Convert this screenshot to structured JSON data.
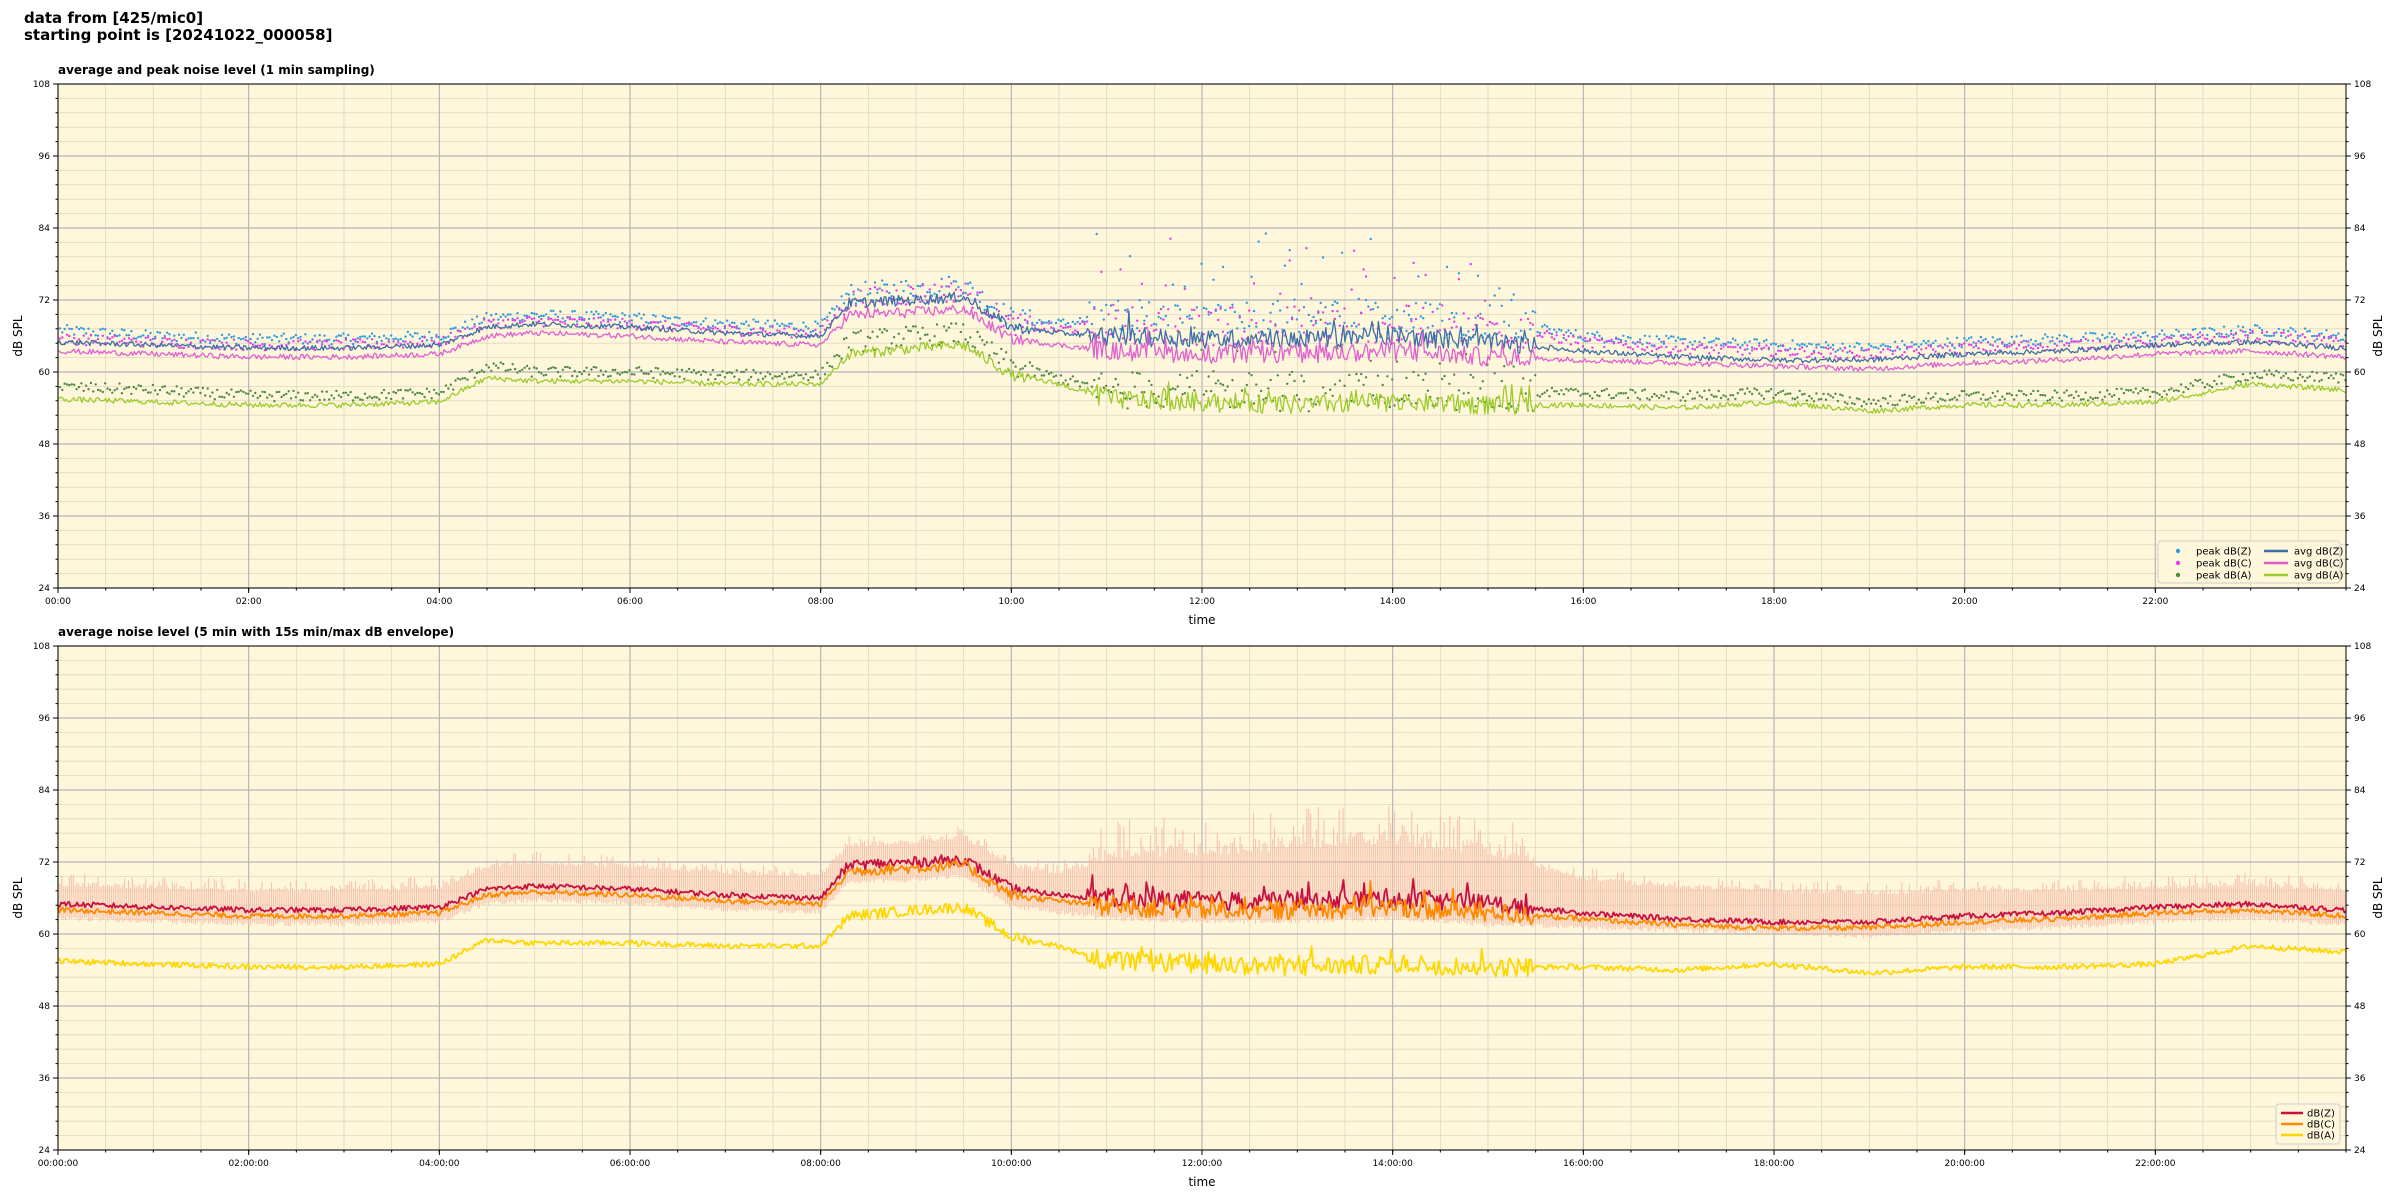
{
  "header": {
    "line1": "data from [425/mic0]",
    "line2": "starting point is [20241022_000058]"
  },
  "colors": {
    "plot_bg": "#fff7dc",
    "major_grid": "#b5b5b5",
    "minor_grid": "#e0d8bd",
    "peak_z": "#2f9be0",
    "peak_c": "#e040e8",
    "peak_a": "#4f8a42",
    "avg_z": "#3e6fa6",
    "avg_c": "#e060d0",
    "avg_a": "#9ccc2c",
    "dbz": "#c8103f",
    "dbc": "#ff8a00",
    "dba": "#ffd700",
    "envelope": "#f6b8a6"
  },
  "chart_data": [
    {
      "type": "line",
      "title": "average and peak noise level (1 min sampling)",
      "xlabel": "time",
      "ylabel": "dB SPL",
      "ylim": [
        24,
        108
      ],
      "yticks": [
        "24",
        "36",
        "48",
        "60",
        "72",
        "84",
        "96",
        "108"
      ],
      "xlim": [
        0,
        24
      ],
      "xticks": [
        "00:00",
        "02:00",
        "04:00",
        "06:00",
        "08:00",
        "10:00",
        "12:00",
        "14:00",
        "16:00",
        "18:00",
        "20:00",
        "22:00"
      ],
      "grid": true,
      "legend_position": "lower-right",
      "legend_columns": 2,
      "series": [
        {
          "name": "peak dB(Z)",
          "kind": "scatter",
          "color_key": "peak_z",
          "x": [
            0,
            1,
            2,
            3,
            4,
            4.5,
            5,
            6,
            7,
            8,
            8.3,
            9,
            9.5,
            10,
            10.5,
            11,
            12,
            13,
            14,
            15,
            16,
            17,
            18,
            19,
            20,
            21,
            22,
            23,
            24
          ],
          "y": [
            67,
            66,
            65.5,
            65.5,
            66,
            69,
            69.5,
            69,
            68,
            67.5,
            73,
            74,
            74.5,
            69,
            68,
            69,
            68.5,
            69,
            69,
            68.5,
            66,
            65,
            64.5,
            64,
            65,
            65.5,
            66,
            67,
            66
          ]
        },
        {
          "name": "peak dB(C)",
          "kind": "scatter",
          "color_key": "peak_c",
          "x": [
            0,
            1,
            2,
            3,
            4,
            4.5,
            5,
            6,
            7,
            8,
            8.3,
            9,
            9.5,
            10,
            10.5,
            11,
            12,
            13,
            14,
            15,
            16,
            17,
            18,
            19,
            20,
            21,
            22,
            23,
            24
          ],
          "y": [
            65.5,
            65,
            64.5,
            64.5,
            65,
            68,
            68.5,
            68,
            67,
            66.5,
            72,
            73,
            73.5,
            68,
            67,
            68,
            67.5,
            68,
            68,
            67.5,
            65,
            64,
            63.5,
            63,
            64,
            64.5,
            65,
            66,
            65
          ]
        },
        {
          "name": "peak dB(A)",
          "kind": "scatter",
          "color_key": "peak_a",
          "x": [
            0,
            1,
            2,
            3,
            4,
            4.5,
            5,
            6,
            7,
            8,
            8.3,
            9,
            9.5,
            10,
            10.5,
            11,
            12,
            13,
            14,
            15,
            16,
            17,
            18,
            19,
            20,
            21,
            22,
            23,
            24
          ],
          "y": [
            57.5,
            57,
            56,
            56,
            56.5,
            61,
            60,
            60,
            59.5,
            59.5,
            65,
            66,
            66.5,
            61,
            59,
            57,
            57,
            56.5,
            57,
            56.5,
            56.5,
            56,
            56.5,
            55,
            56,
            56,
            56.5,
            59.5,
            59
          ]
        },
        {
          "name": "avg dB(Z)",
          "kind": "line",
          "color_key": "avg_z",
          "x": [
            0,
            1,
            2,
            3,
            4,
            4.5,
            5,
            6,
            7,
            8,
            8.3,
            9,
            9.5,
            10,
            10.5,
            11,
            12,
            13,
            14,
            15,
            16,
            17,
            18,
            19,
            20,
            21,
            22,
            23,
            24
          ],
          "y": [
            65,
            64.5,
            64,
            64,
            64.5,
            67.5,
            68,
            67.5,
            66.5,
            66,
            71.5,
            72,
            72.5,
            67.5,
            66.5,
            66,
            65.5,
            65.5,
            66,
            65,
            63.5,
            62.5,
            62,
            62,
            63,
            63.5,
            64.5,
            65,
            64
          ]
        },
        {
          "name": "avg dB(C)",
          "kind": "line",
          "color_key": "avg_c",
          "x": [
            0,
            1,
            2,
            3,
            4,
            4.5,
            5,
            6,
            7,
            8,
            8.3,
            9,
            9.5,
            10,
            10.5,
            11,
            12,
            13,
            14,
            15,
            16,
            17,
            18,
            19,
            20,
            21,
            22,
            23,
            24
          ],
          "y": [
            63.5,
            63,
            62.5,
            62.5,
            63,
            66,
            66.5,
            66,
            65,
            64.5,
            69.5,
            70,
            70.5,
            65.5,
            64.5,
            63.5,
            63,
            63,
            63.5,
            62.5,
            62,
            61.5,
            61,
            60.5,
            61.5,
            62,
            63,
            63.5,
            62.5
          ]
        },
        {
          "name": "avg dB(A)",
          "kind": "line",
          "color_key": "avg_a",
          "x": [
            0,
            1,
            2,
            3,
            4,
            4.5,
            5,
            6,
            7,
            8,
            8.3,
            9,
            9.5,
            10,
            10.5,
            11,
            12,
            13,
            14,
            15,
            16,
            17,
            18,
            19,
            20,
            21,
            22,
            23,
            24
          ],
          "y": [
            55.5,
            55,
            54.5,
            54.5,
            55,
            59,
            58.5,
            58.5,
            58,
            58,
            63,
            64,
            64.5,
            59.5,
            58,
            55.5,
            55,
            54.5,
            55,
            54.5,
            54.5,
            54,
            55,
            53.5,
            54.5,
            54.5,
            55,
            58,
            57
          ]
        }
      ]
    },
    {
      "type": "line",
      "title": "average noise level (5 min with 15s min/max dB envelope)",
      "xlabel": "time",
      "ylabel": "dB SPL",
      "ylim": [
        24,
        108
      ],
      "yticks": [
        "24",
        "36",
        "48",
        "60",
        "72",
        "84",
        "96",
        "108"
      ],
      "xlim": [
        0,
        24
      ],
      "xticks": [
        "00:00:00",
        "02:00:00",
        "04:00:00",
        "06:00:00",
        "08:00:00",
        "10:00:00",
        "12:00:00",
        "14:00:00",
        "16:00:00",
        "18:00:00",
        "20:00:00",
        "22:00:00"
      ],
      "grid": true,
      "legend_position": "lower-right",
      "legend_columns": 1,
      "envelope": {
        "color_key": "envelope",
        "x": [
          0,
          1,
          2,
          3,
          4,
          4.5,
          5,
          6,
          7,
          8,
          8.3,
          9,
          9.5,
          10,
          10.5,
          11,
          12,
          13,
          14,
          15,
          16,
          17,
          18,
          19,
          20,
          21,
          22,
          23,
          24
        ],
        "low": [
          63,
          62.5,
          62,
          62,
          62.5,
          65.5,
          66,
          65.5,
          64.5,
          64,
          69,
          69.5,
          70,
          65,
          64,
          63,
          62.5,
          62.5,
          63,
          62,
          61.5,
          61,
          60.5,
          60,
          61,
          61.5,
          62.5,
          63,
          62
        ],
        "high": [
          68,
          67.5,
          67,
          67,
          67.5,
          71,
          71.5,
          71,
          70,
          69.5,
          74.5,
          75,
          76,
          71,
          70,
          72,
          73,
          74,
          75,
          73,
          69,
          67.5,
          67,
          66.5,
          67,
          67,
          67.5,
          68,
          67
        ]
      },
      "series": [
        {
          "name": "dB(Z)",
          "kind": "line",
          "color_key": "dbz",
          "x": [
            0,
            1,
            2,
            3,
            4,
            4.5,
            5,
            6,
            7,
            8,
            8.3,
            9,
            9.5,
            10,
            10.5,
            11,
            12,
            13,
            14,
            15,
            16,
            17,
            18,
            19,
            20,
            21,
            22,
            23,
            24
          ],
          "y": [
            65,
            64.5,
            64,
            64,
            64.5,
            67.5,
            68,
            67.5,
            66.5,
            66,
            71.5,
            72,
            72.5,
            67.5,
            66.5,
            66,
            65.5,
            65.5,
            66,
            65,
            63.5,
            62.5,
            62,
            62,
            63,
            63.5,
            64.5,
            65,
            64
          ]
        },
        {
          "name": "dB(C)",
          "kind": "line",
          "color_key": "dbc",
          "x": [
            0,
            1,
            2,
            3,
            4,
            4.5,
            5,
            6,
            7,
            8,
            8.3,
            9,
            9.5,
            10,
            10.5,
            11,
            12,
            13,
            14,
            15,
            16,
            17,
            18,
            19,
            20,
            21,
            22,
            23,
            24
          ],
          "y": [
            64,
            63.5,
            63,
            63,
            63.5,
            66.5,
            67,
            66.5,
            65.5,
            65,
            70.5,
            71,
            71.5,
            66.5,
            65.5,
            64.5,
            64,
            64,
            64.5,
            63.5,
            62.5,
            61.5,
            61,
            61,
            62,
            62.5,
            63.5,
            64,
            63
          ]
        },
        {
          "name": "dB(A)",
          "kind": "line",
          "color_key": "dba",
          "x": [
            0,
            1,
            2,
            3,
            4,
            4.5,
            5,
            6,
            7,
            8,
            8.3,
            9,
            9.5,
            10,
            10.5,
            11,
            12,
            13,
            14,
            15,
            16,
            17,
            18,
            19,
            20,
            21,
            22,
            23,
            24
          ],
          "y": [
            55.5,
            55,
            54.5,
            54.5,
            55,
            59,
            58.5,
            58.5,
            58,
            58,
            63,
            64,
            64.5,
            59.5,
            58,
            55.5,
            55,
            54.5,
            55,
            54.5,
            54.5,
            54,
            55,
            53.5,
            54.5,
            54.5,
            55,
            58,
            57
          ]
        }
      ]
    }
  ]
}
